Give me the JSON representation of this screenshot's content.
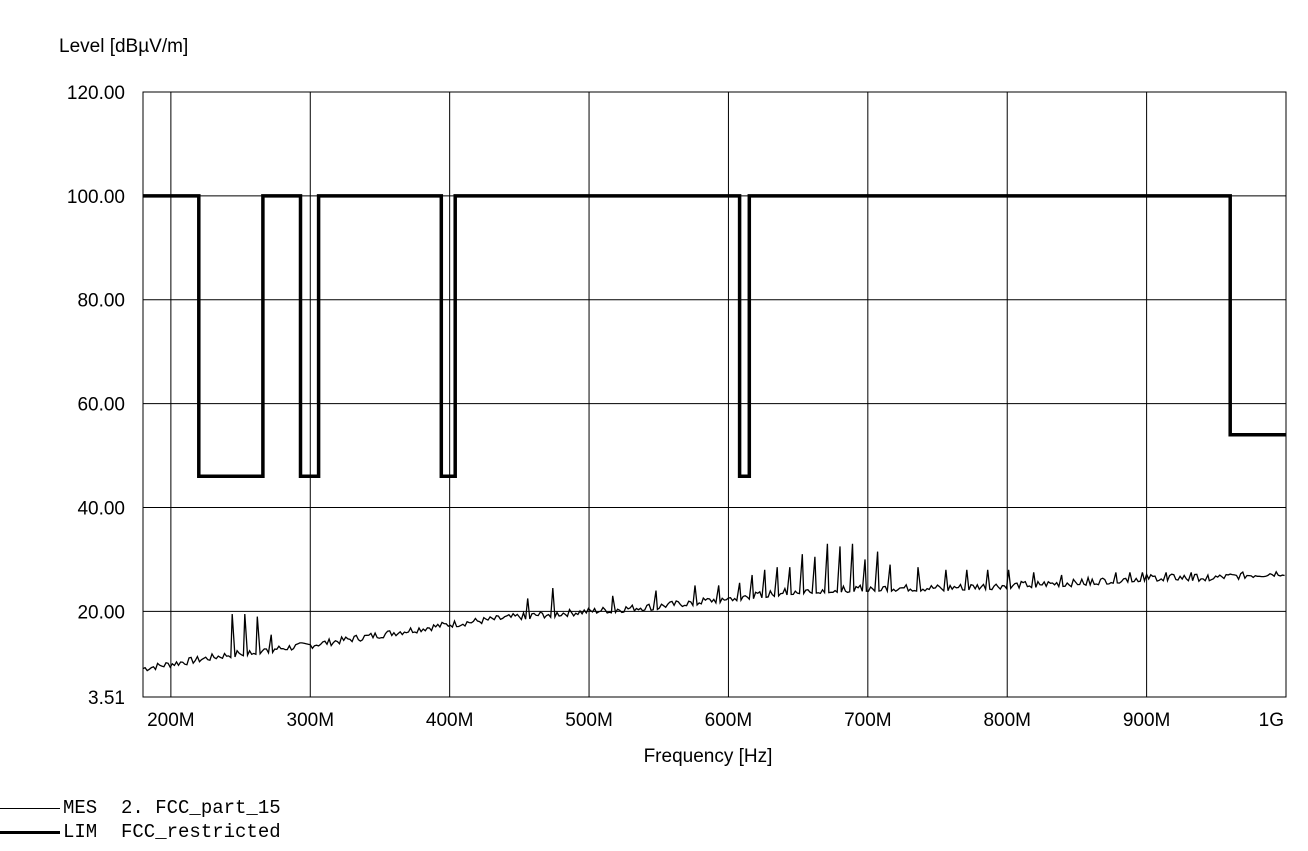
{
  "chart_data": {
    "type": "line",
    "ylabel": "Level [dBµV/m]",
    "xlabel": "Frequency [Hz]",
    "xlim": [
      180,
      1000
    ],
    "ylim": [
      3.51,
      120
    ],
    "y_ticks": [
      3.51,
      20,
      40,
      60,
      80,
      100,
      120
    ],
    "y_tick_labels": [
      "3.51",
      "20.00",
      "40.00",
      "60.00",
      "80.00",
      "100.00",
      "120.00"
    ],
    "x_ticks": [
      200,
      300,
      400,
      500,
      600,
      700,
      800,
      900,
      1000
    ],
    "x_tick_labels": [
      "200M",
      "300M",
      "400M",
      "500M",
      "600M",
      "700M",
      "800M",
      "900M",
      "1G"
    ],
    "grid": true,
    "legend_placement": "bottom-left",
    "series": [
      {
        "name": "2. FCC_part_15",
        "code": "MES",
        "style": "thin",
        "base": [
          [
            180,
            9
          ],
          [
            250,
            12
          ],
          [
            300,
            13.5
          ],
          [
            350,
            15.5
          ],
          [
            400,
            17.5
          ],
          [
            450,
            19
          ],
          [
            500,
            20
          ],
          [
            550,
            21
          ],
          [
            600,
            22.5
          ],
          [
            650,
            24
          ],
          [
            700,
            24.5
          ],
          [
            750,
            24.5
          ],
          [
            800,
            25
          ],
          [
            850,
            25.5
          ],
          [
            900,
            26.5
          ],
          [
            950,
            26.5
          ],
          [
            1000,
            27.5
          ]
        ],
        "peaks": [
          [
            244,
            19.5
          ],
          [
            253,
            19.5
          ],
          [
            262,
            19
          ],
          [
            272,
            15.5
          ],
          [
            456,
            22.5
          ],
          [
            474,
            24.5
          ],
          [
            517,
            23
          ],
          [
            548,
            24
          ],
          [
            576,
            25
          ],
          [
            593,
            25
          ],
          [
            608,
            25.5
          ],
          [
            617,
            27
          ],
          [
            626,
            28
          ],
          [
            635,
            28.5
          ],
          [
            644,
            28.5
          ],
          [
            653,
            31
          ],
          [
            662,
            30.5
          ],
          [
            671,
            33
          ],
          [
            680,
            32.5
          ],
          [
            689,
            33
          ],
          [
            698,
            30
          ],
          [
            707,
            31.5
          ],
          [
            716,
            29
          ],
          [
            736,
            28.5
          ],
          [
            756,
            28
          ],
          [
            771,
            28
          ],
          [
            786,
            28
          ],
          [
            801,
            28
          ],
          [
            819,
            27.5
          ],
          [
            839,
            27
          ],
          [
            858,
            26.5
          ],
          [
            878,
            27.5
          ],
          [
            888,
            27.5
          ],
          [
            897,
            27.5
          ],
          [
            914,
            27.5
          ],
          [
            932,
            27.5
          ],
          [
            944,
            27
          ]
        ]
      },
      {
        "name": "FCC_restricted",
        "code": "LIM",
        "style": "thick",
        "points": [
          [
            180,
            100
          ],
          [
            220,
            100
          ],
          [
            220,
            46
          ],
          [
            266,
            46
          ],
          [
            266,
            100
          ],
          [
            293,
            100
          ],
          [
            293,
            46
          ],
          [
            306,
            46
          ],
          [
            306,
            100
          ],
          [
            394,
            100
          ],
          [
            394,
            46
          ],
          [
            404,
            46
          ],
          [
            404,
            100
          ],
          [
            608,
            100
          ],
          [
            608,
            46
          ],
          [
            615,
            46
          ],
          [
            615,
            100
          ],
          [
            960,
            100
          ],
          [
            960,
            54
          ],
          [
            1000,
            54
          ]
        ]
      }
    ]
  }
}
